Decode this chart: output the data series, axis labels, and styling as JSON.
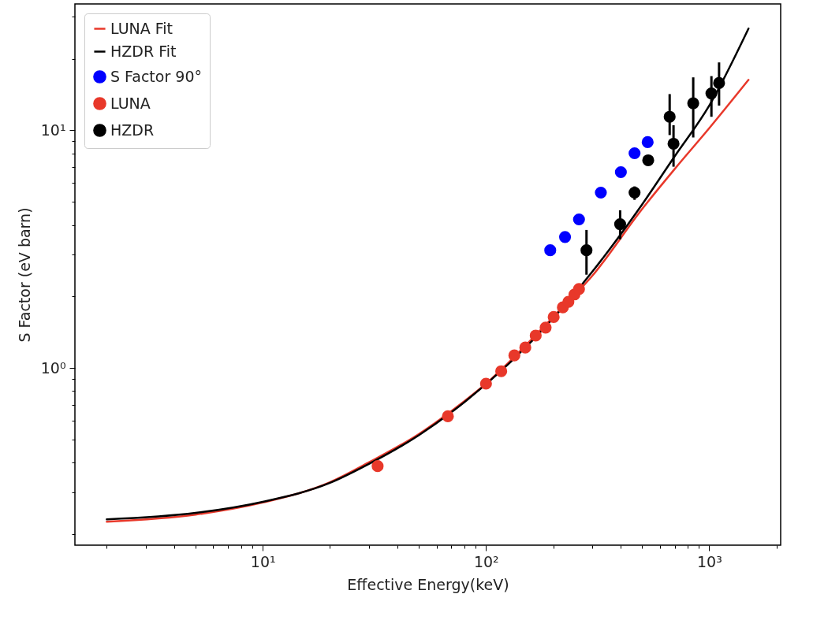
{
  "chart_data": {
    "type": "line",
    "xlabel": "Effective Energy(keV)",
    "ylabel": "S Factor (eV barn)",
    "log": "xy",
    "grid": false,
    "legend": "top left",
    "xlim": [
      1.44,
      2090
    ],
    "ylim": [
      0.18,
      34
    ],
    "xticks": [
      {
        "value": 2,
        "label": null
      },
      {
        "value": 3,
        "label": null
      },
      {
        "value": 4,
        "label": null
      },
      {
        "value": 5,
        "label": null
      },
      {
        "value": 6,
        "label": null
      },
      {
        "value": 7,
        "label": null
      },
      {
        "value": 8,
        "label": null
      },
      {
        "value": 9,
        "label": null
      },
      {
        "value": 10,
        "label": "10¹"
      },
      {
        "value": 20,
        "label": null
      },
      {
        "value": 30,
        "label": null
      },
      {
        "value": 40,
        "label": null
      },
      {
        "value": 50,
        "label": null
      },
      {
        "value": 60,
        "label": null
      },
      {
        "value": 70,
        "label": null
      },
      {
        "value": 80,
        "label": null
      },
      {
        "value": 90,
        "label": null
      },
      {
        "value": 100,
        "label": "10²"
      },
      {
        "value": 200,
        "label": null
      },
      {
        "value": 300,
        "label": null
      },
      {
        "value": 400,
        "label": null
      },
      {
        "value": 500,
        "label": null
      },
      {
        "value": 600,
        "label": null
      },
      {
        "value": 700,
        "label": null
      },
      {
        "value": 800,
        "label": null
      },
      {
        "value": 900,
        "label": null
      },
      {
        "value": 1000,
        "label": "10³"
      },
      {
        "value": 2000,
        "label": null
      }
    ],
    "yticks": [
      {
        "value": 0.2,
        "label": null
      },
      {
        "value": 0.3,
        "label": null
      },
      {
        "value": 0.4,
        "label": null
      },
      {
        "value": 0.5,
        "label": null
      },
      {
        "value": 0.6,
        "label": null
      },
      {
        "value": 0.7,
        "label": null
      },
      {
        "value": 0.8,
        "label": null
      },
      {
        "value": 0.9,
        "label": null
      },
      {
        "value": 1,
        "label": "10⁰"
      },
      {
        "value": 2,
        "label": null
      },
      {
        "value": 3,
        "label": null
      },
      {
        "value": 4,
        "label": null
      },
      {
        "value": 5,
        "label": null
      },
      {
        "value": 6,
        "label": null
      },
      {
        "value": 7,
        "label": null
      },
      {
        "value": 8,
        "label": null
      },
      {
        "value": 9,
        "label": null
      },
      {
        "value": 10,
        "label": "10¹"
      },
      {
        "value": 20,
        "label": null
      },
      {
        "value": 30,
        "label": null
      }
    ],
    "series": [
      {
        "name": "LUNA Fit",
        "color": "#e8382a",
        "line_style": "solid",
        "x": [
          2,
          5,
          10,
          20,
          30,
          50,
          70,
          100,
          200,
          300,
          500,
          700,
          1000,
          1500
        ],
        "values": [
          0.226,
          0.242,
          0.272,
          0.331,
          0.402,
          0.528,
          0.66,
          0.86,
          1.64,
          2.45,
          4.66,
          6.87,
          10.2,
          16.3
        ]
      },
      {
        "name": "HZDR Fit",
        "color": "#000000",
        "line_style": "solid",
        "x": [
          2,
          5,
          10,
          20,
          30,
          50,
          70,
          200,
          300,
          500,
          700,
          1000,
          1500
        ],
        "values": [
          0.231,
          0.246,
          0.274,
          0.329,
          0.396,
          0.522,
          0.652,
          1.62,
          2.55,
          4.87,
          7.77,
          12.7,
          26.8
        ]
      },
      {
        "name": "S Factor 90°",
        "type": "scatter",
        "marker": "circle",
        "color": "#0000ff",
        "x": [
          194,
          226,
          261,
          327,
          402,
          463,
          530
        ],
        "values": [
          3.13,
          3.56,
          4.22,
          5.47,
          6.67,
          8.01,
          8.92
        ]
      },
      {
        "name": "LUNA",
        "type": "scatter",
        "marker": "circle",
        "color": "#e8382a",
        "x": [
          32.7,
          67.5,
          100,
          117,
          134,
          150,
          167,
          185,
          201,
          221,
          234,
          249,
          261
        ],
        "values": [
          0.387,
          0.627,
          0.86,
          0.97,
          1.13,
          1.22,
          1.37,
          1.48,
          1.64,
          1.8,
          1.9,
          2.04,
          2.15
        ]
      },
      {
        "name": "HZDR",
        "type": "scatter",
        "marker": "circle",
        "color": "#000000",
        "x": [
          282,
          399,
          463,
          533,
          665,
          692,
          848,
          1023,
          1107
        ],
        "values": [
          3.13,
          4.03,
          5.47,
          7.48,
          11.4,
          8.78,
          13.0,
          14.3,
          15.8
        ],
        "errors": [
          [
            2.47,
            3.81
          ],
          [
            3.48,
            4.61
          ],
          [
            5.1,
            5.81
          ],
          null,
          [
            9.55,
            14.2
          ],
          [
            7.03,
            10.5
          ],
          [
            9.33,
            16.7
          ],
          [
            11.4,
            16.9
          ],
          [
            12.7,
            19.3
          ]
        ]
      }
    ]
  }
}
